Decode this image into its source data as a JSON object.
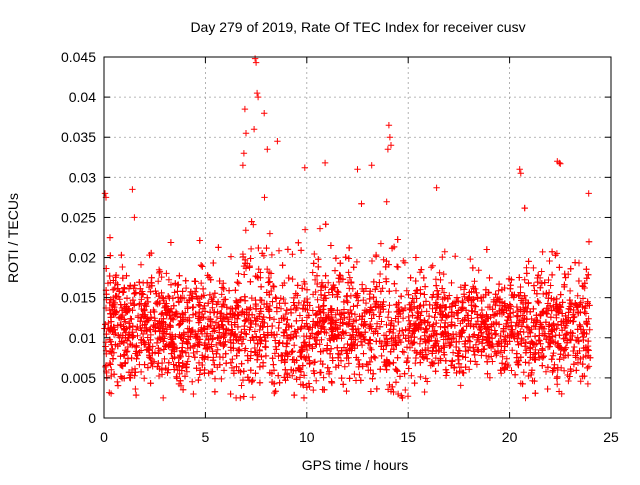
{
  "chart_data": {
    "type": "scatter",
    "title": "Day 279 of 2019, Rate Of TEC Index for receiver cusv",
    "xlabel": "GPS time / hours",
    "ylabel": "ROTI / TECUs",
    "xlim": [
      0,
      25
    ],
    "ylim": [
      0,
      0.045
    ],
    "x_ticks": [
      0,
      5,
      10,
      15,
      20,
      25
    ],
    "x_tick_labels": [
      "0",
      "5",
      "10",
      "15",
      "20",
      "25"
    ],
    "y_ticks": [
      0,
      0.005,
      0.01,
      0.015,
      0.02,
      0.025,
      0.03,
      0.035,
      0.04,
      0.045
    ],
    "y_tick_labels": [
      "0",
      "0.005",
      "0.01",
      "0.015",
      "0.02",
      "0.025",
      "0.03",
      "0.035",
      "0.04",
      "0.045"
    ],
    "grid": true,
    "marker": "+",
    "series_color": "#ff0000",
    "x_extent": [
      0,
      24
    ],
    "dense_band": {
      "y_low": 0.0035,
      "y_high": 0.022,
      "median": 0.011
    },
    "notable_points": [
      {
        "x": 0.05,
        "y": 0.028
      },
      {
        "x": 0.1,
        "y": 0.0275
      },
      {
        "x": 1.4,
        "y": 0.0285
      },
      {
        "x": 1.5,
        "y": 0.025
      },
      {
        "x": 6.95,
        "y": 0.0385
      },
      {
        "x": 7.0,
        "y": 0.0355
      },
      {
        "x": 7.45,
        "y": 0.0448
      },
      {
        "x": 7.5,
        "y": 0.0443
      },
      {
        "x": 7.55,
        "y": 0.0405
      },
      {
        "x": 7.6,
        "y": 0.04
      },
      {
        "x": 7.4,
        "y": 0.036
      },
      {
        "x": 7.9,
        "y": 0.038
      },
      {
        "x": 8.05,
        "y": 0.0335
      },
      {
        "x": 8.55,
        "y": 0.0345
      },
      {
        "x": 6.9,
        "y": 0.033
      },
      {
        "x": 6.85,
        "y": 0.0315
      },
      {
        "x": 9.9,
        "y": 0.0312
      },
      {
        "x": 10.9,
        "y": 0.0318
      },
      {
        "x": 12.5,
        "y": 0.031
      },
      {
        "x": 13.2,
        "y": 0.0315
      },
      {
        "x": 14.05,
        "y": 0.0365
      },
      {
        "x": 14.1,
        "y": 0.035
      },
      {
        "x": 14.15,
        "y": 0.034
      },
      {
        "x": 14.0,
        "y": 0.0335
      },
      {
        "x": 16.4,
        "y": 0.0287
      },
      {
        "x": 20.5,
        "y": 0.031
      },
      {
        "x": 20.55,
        "y": 0.0305
      },
      {
        "x": 22.35,
        "y": 0.032
      },
      {
        "x": 22.45,
        "y": 0.0318
      },
      {
        "x": 22.5,
        "y": 0.0317
      },
      {
        "x": 23.9,
        "y": 0.028
      }
    ]
  }
}
